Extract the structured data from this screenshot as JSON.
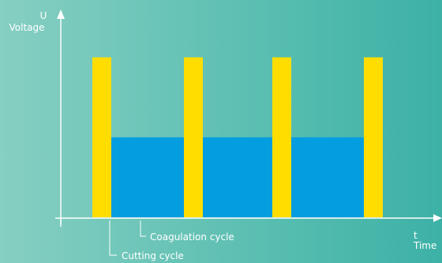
{
  "chart_data": {
    "type": "bar",
    "title": "",
    "y_axis": {
      "symbol": "U",
      "label": "Voltage"
    },
    "x_axis": {
      "symbol": "t",
      "label": "Time"
    },
    "annotations": {
      "coagulation": "Coagulation cycle",
      "cutting": "Cutting cycle"
    },
    "ylim": [
      0,
      10
    ],
    "series": [
      {
        "kind": "cutting",
        "color": "#ffdd00",
        "pulses": [
          {
            "start": 1.0,
            "end": 1.6,
            "value": 8.0
          },
          {
            "start": 3.9,
            "end": 4.5,
            "value": 8.0
          },
          {
            "start": 6.7,
            "end": 7.3,
            "value": 8.0
          },
          {
            "start": 9.6,
            "end": 10.2,
            "value": 8.0
          }
        ]
      },
      {
        "kind": "coagulation",
        "color": "#049de0",
        "pulses": [
          {
            "start": 1.6,
            "end": 3.9,
            "value": 4.0
          },
          {
            "start": 4.5,
            "end": 6.7,
            "value": 4.0
          },
          {
            "start": 7.3,
            "end": 9.6,
            "value": 4.0
          }
        ]
      }
    ],
    "xlim": [
      0,
      10.2
    ]
  }
}
